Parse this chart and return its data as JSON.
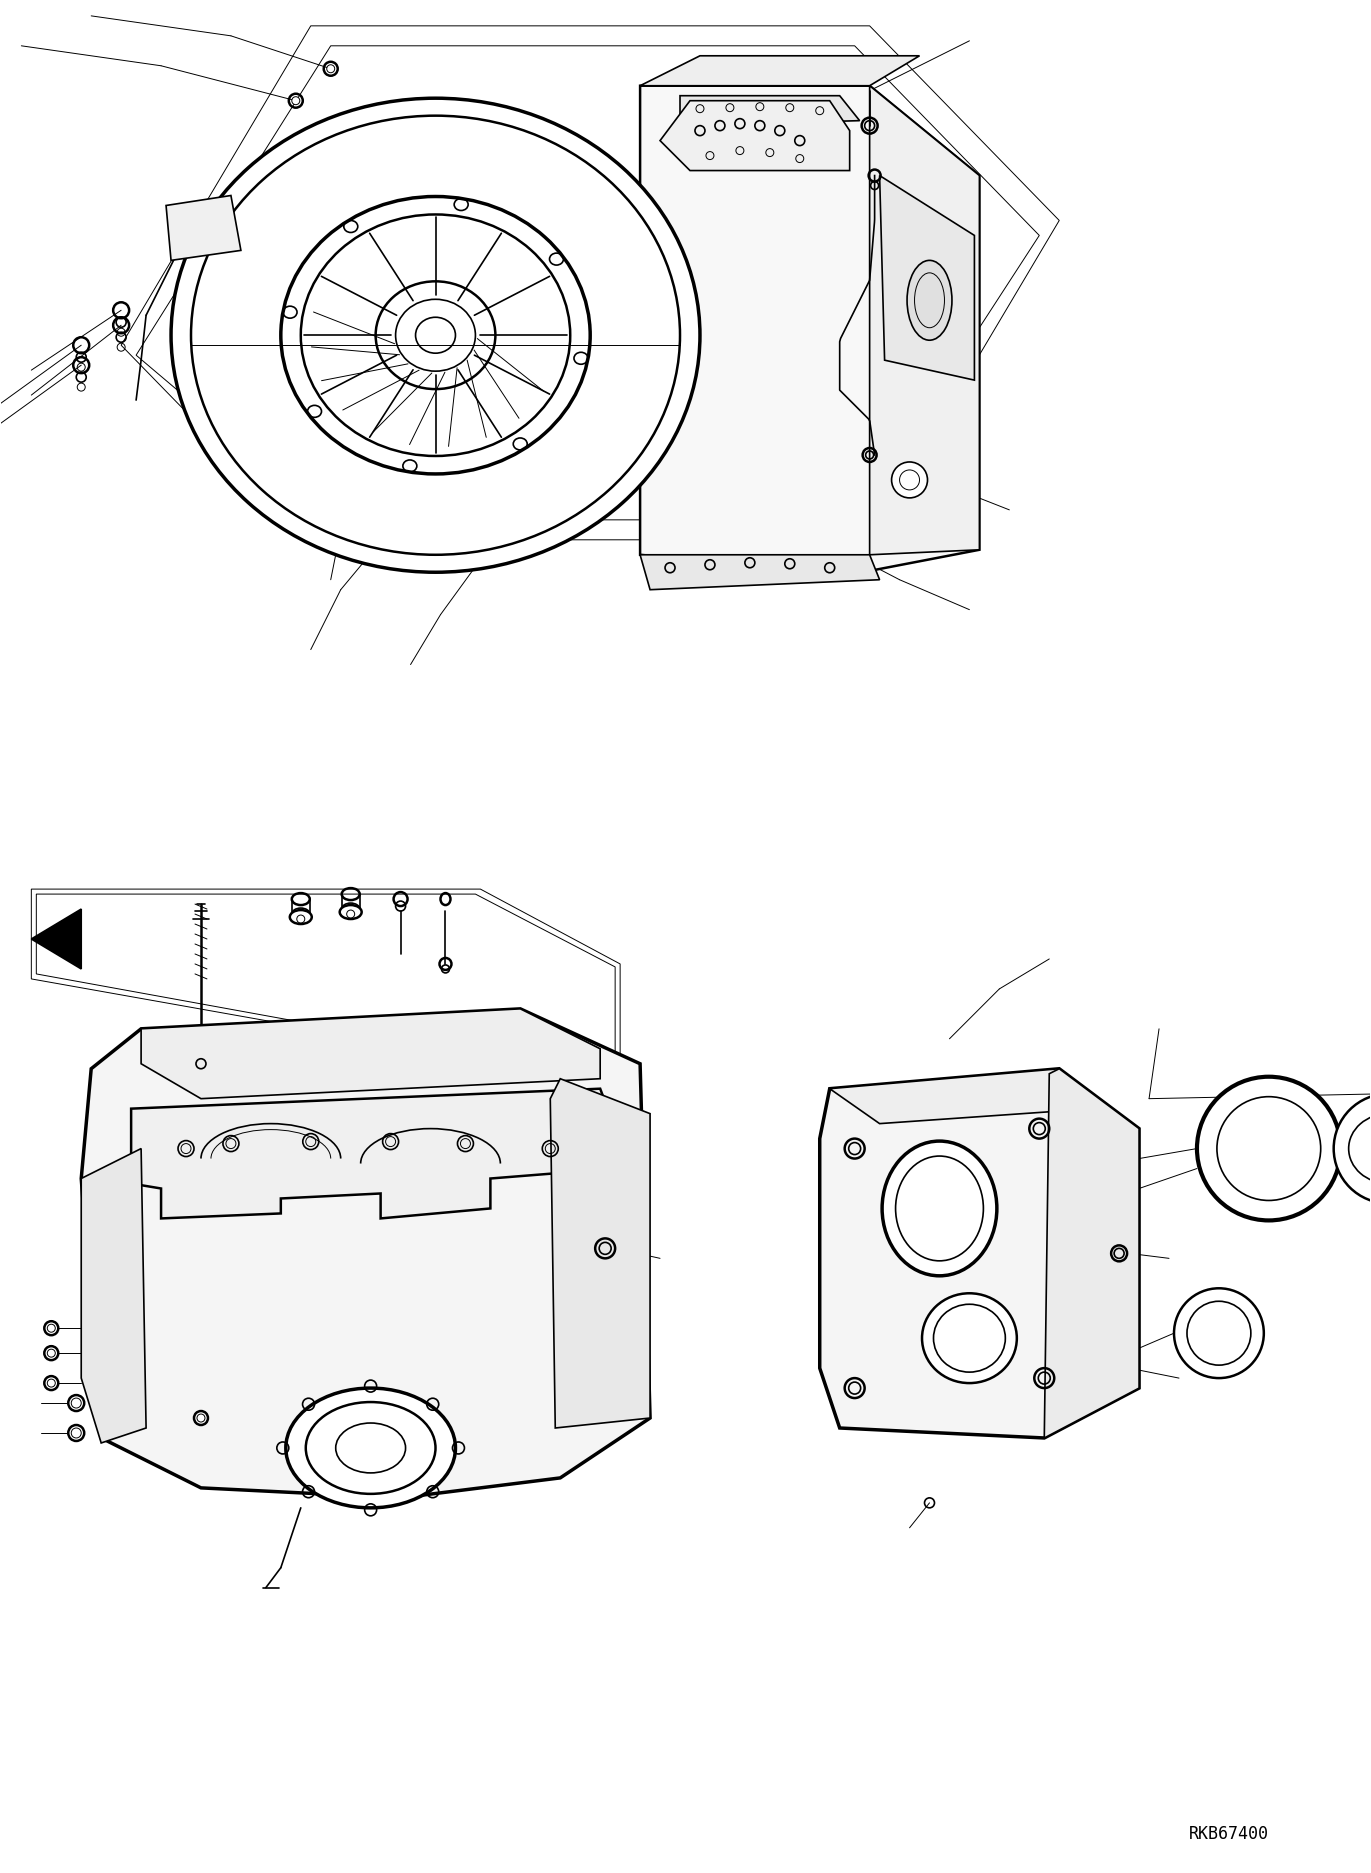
{
  "bg_color": "#ffffff",
  "line_color": "#000000",
  "figure_width": 13.71,
  "figure_height": 18.74,
  "dpi": 100,
  "watermark_text": "RKB67400",
  "watermark_fontsize": 12
}
